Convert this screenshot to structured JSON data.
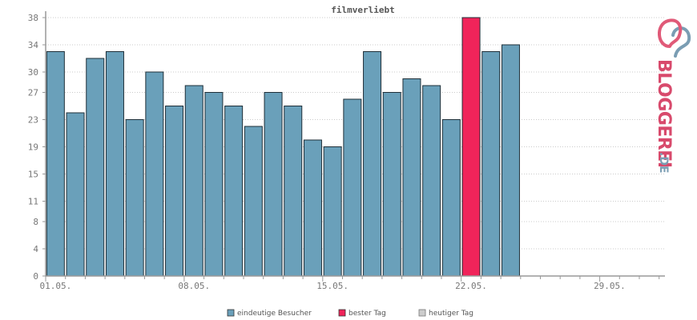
{
  "chart_data": {
    "type": "bar",
    "title": "filmverliebt",
    "y_ticks": [
      "0",
      "4",
      "8",
      "11",
      "15",
      "19",
      "23",
      "27",
      "30",
      "34",
      "38"
    ],
    "ylim": [
      0,
      38
    ],
    "x_tick_labels": [
      "01.05.",
      "08.05.",
      "15.05.",
      "22.05.",
      "29.05."
    ],
    "days": [
      "01.05.",
      "02.05.",
      "03.05.",
      "04.05.",
      "05.05.",
      "06.05.",
      "07.05.",
      "08.05.",
      "09.05.",
      "10.05.",
      "11.05.",
      "12.05.",
      "13.05.",
      "14.05.",
      "15.05.",
      "16.05.",
      "17.05.",
      "18.05.",
      "19.05.",
      "20.05.",
      "21.05.",
      "22.05.",
      "23.05.",
      "24.05.",
      "25.05.",
      "26.05.",
      "27.05.",
      "28.05.",
      "29.05.",
      "30.05.",
      "31.05."
    ],
    "values": [
      33,
      24,
      32,
      33,
      23,
      30,
      25,
      28,
      27,
      25,
      22,
      27,
      25,
      20,
      19,
      26,
      33,
      27,
      29,
      28,
      23,
      38,
      33,
      34,
      null,
      null,
      null,
      null,
      null,
      null,
      null
    ],
    "best_day_index": 21,
    "grid": true,
    "legend_position": "bottom",
    "series": [
      {
        "name": "eindeutige Besucher",
        "color": "#6aa0ba"
      },
      {
        "name": "bester Tag",
        "color": "#f0245a"
      },
      {
        "name": "heutiger Tag",
        "color": "#cccccc"
      }
    ]
  },
  "logo": {
    "main": "BLOGGEREI",
    "suffix": ".DE"
  }
}
